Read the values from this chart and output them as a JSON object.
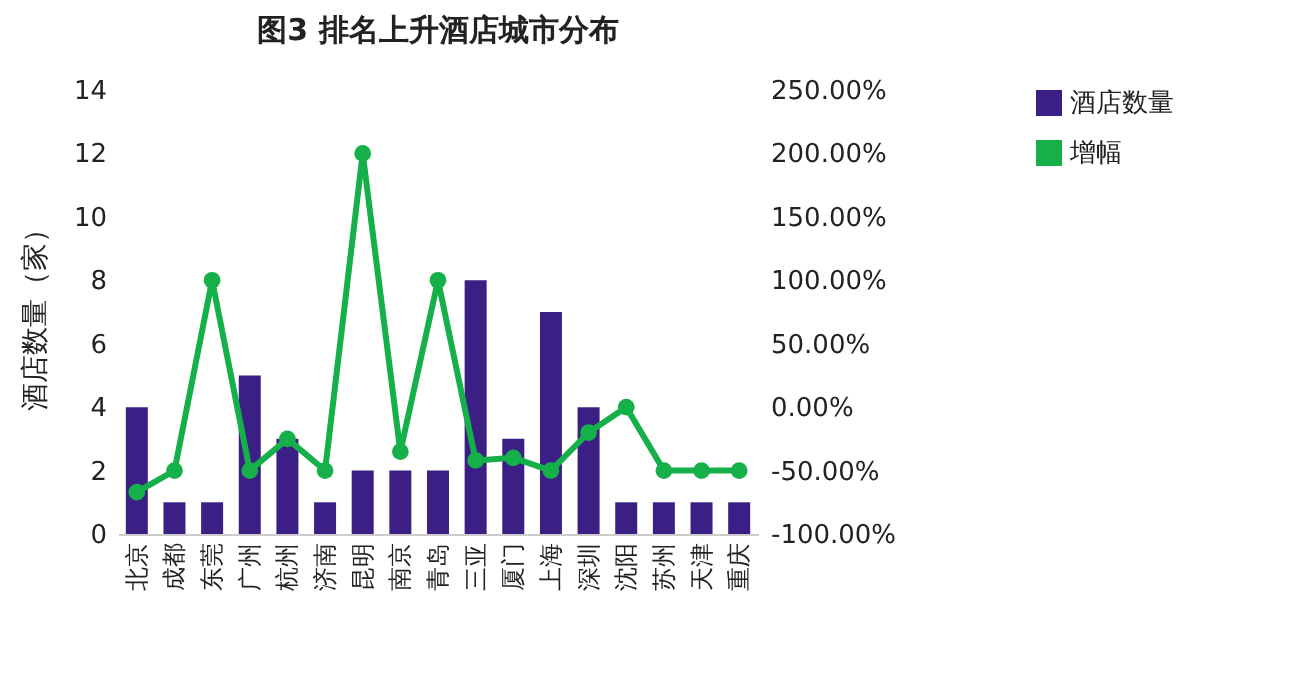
{
  "chart_data": {
    "type": "bar",
    "title": "图3 排名上升酒店城市分布",
    "ylabel": "酒店数量（家）",
    "categories": [
      "北京",
      "成都",
      "东莞",
      "广州",
      "杭州",
      "济南",
      "昆明",
      "南京",
      "青岛",
      "三亚",
      "厦门",
      "上海",
      "深圳",
      "沈阳",
      "苏州",
      "天津",
      "重庆"
    ],
    "series": [
      {
        "name": "酒店数量",
        "color": "#3b1f85",
        "values": [
          4,
          1,
          1,
          5,
          3,
          1,
          2,
          2,
          2,
          8,
          3,
          7,
          4,
          1,
          1,
          1,
          1
        ]
      },
      {
        "name": "增幅",
        "type": "line",
        "axis": "y2",
        "color": "#16b04a",
        "values": [
          -67,
          -50,
          100,
          -50,
          -25,
          -50,
          200,
          -35,
          100,
          -42,
          -40,
          -50,
          -20,
          0,
          -50,
          -50,
          -50
        ]
      }
    ],
    "ylim": [
      0,
      14
    ],
    "yticks": [
      0,
      2,
      4,
      6,
      8,
      10,
      12,
      14
    ],
    "y2lim": [
      -100,
      250
    ],
    "y2ticks": [
      {
        "value": -100,
        "label": "-100.00%"
      },
      {
        "value": -50,
        "label": "-50.00%"
      },
      {
        "value": 0,
        "label": "0.00%"
      },
      {
        "value": 50,
        "label": "50.00%"
      },
      {
        "value": 100,
        "label": "100.00%"
      },
      {
        "value": 150,
        "label": "150.00%"
      },
      {
        "value": 200,
        "label": "200.00%"
      },
      {
        "value": 250,
        "label": "250.00%"
      }
    ],
    "marker": "circle",
    "legend": "right",
    "grid": false
  }
}
